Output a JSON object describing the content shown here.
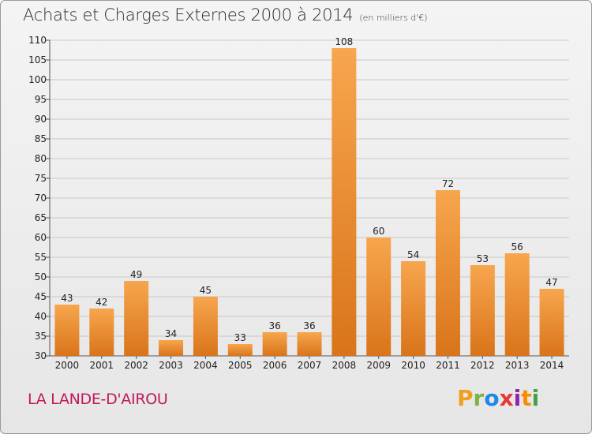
{
  "header": {
    "title": "Achats et Charges Externes 2000 à 2014",
    "subtitle": "(en milliers d'€)"
  },
  "footer": {
    "commune": "LA LANDE-D'AIROU",
    "logo_text": "Proxiti",
    "logo_colors": [
      "#f0a020",
      "#7cb342",
      "#1e88e5",
      "#e53935",
      "#8e24aa",
      "#fb8c00",
      "#43a047"
    ]
  },
  "chart_data": {
    "type": "bar",
    "categories": [
      "2000",
      "2001",
      "2002",
      "2003",
      "2004",
      "2005",
      "2006",
      "2007",
      "2008",
      "2009",
      "2010",
      "2011",
      "2012",
      "2013",
      "2014"
    ],
    "values": [
      43,
      42,
      49,
      34,
      45,
      33,
      36,
      36,
      108,
      60,
      54,
      72,
      53,
      56,
      47
    ],
    "ylim": [
      30,
      110
    ],
    "yticks": [
      30,
      35,
      40,
      45,
      50,
      55,
      60,
      65,
      70,
      75,
      80,
      85,
      90,
      95,
      100,
      105,
      110
    ],
    "grid": true,
    "colors": {
      "bar_light": "#f7a64e",
      "bar_dark": "#d9741a",
      "grid": "#c8c8c8"
    }
  }
}
